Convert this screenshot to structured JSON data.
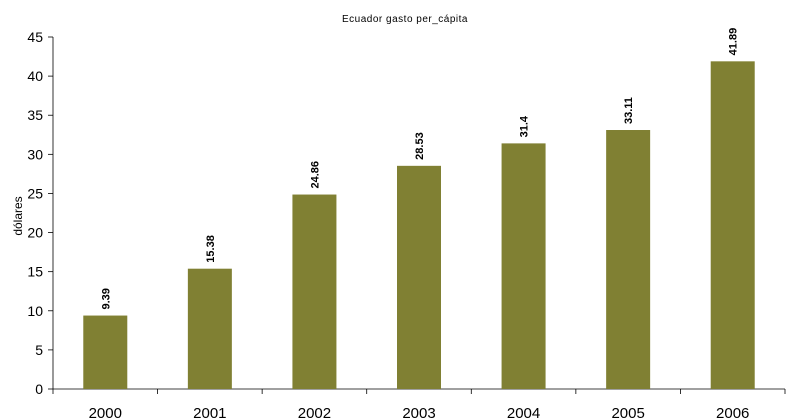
{
  "chart_data": {
    "type": "bar",
    "title": "Ecuador gasto per_cápita",
    "xlabel": "",
    "ylabel": "dólares",
    "categories": [
      "2000",
      "2001",
      "2002",
      "2003",
      "2004",
      "2005",
      "2006"
    ],
    "values": [
      9.39,
      15.38,
      24.86,
      28.53,
      31.4,
      33.11,
      41.89
    ],
    "data_labels": [
      "9.39",
      "15.38",
      "24.86",
      "28.53",
      "31.4",
      "33.11",
      "41.89"
    ],
    "ylim": [
      0,
      45
    ],
    "yticks": [
      0,
      5,
      10,
      15,
      20,
      25,
      30,
      35,
      40,
      45
    ],
    "grid": false,
    "legend": "none",
    "bar_color": "#808033"
  }
}
